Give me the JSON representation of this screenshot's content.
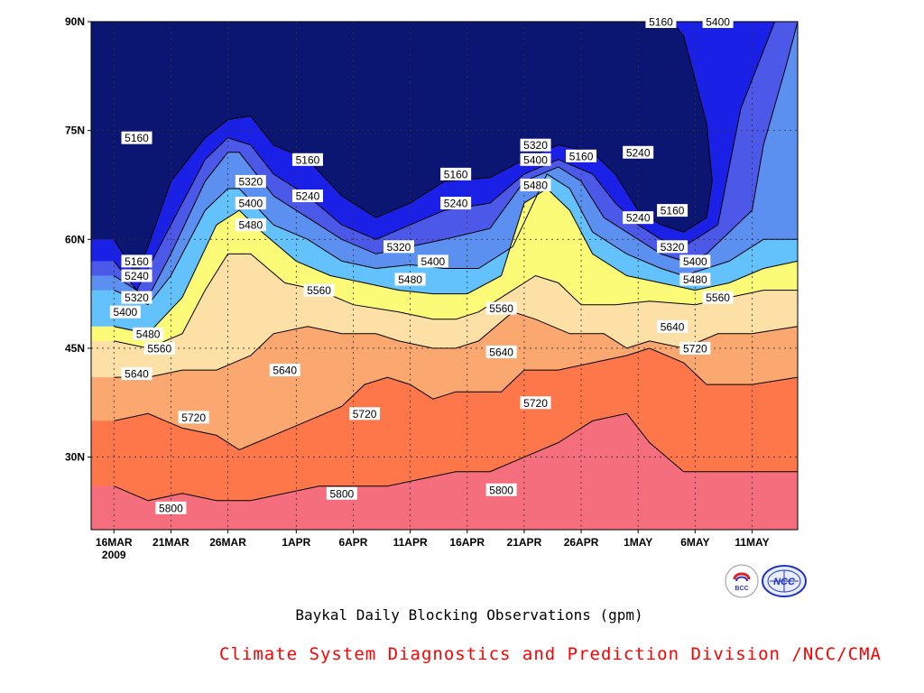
{
  "chart_data": {
    "type": "contour",
    "title": "Baykal Daily Blocking Observations (gpm)",
    "credit": "Climate System Diagnostics and Prediction Division /NCC/CMA",
    "x_ticks": [
      "16MAR",
      "21MAR",
      "26MAR",
      "1APR",
      "6APR",
      "11APR",
      "16APR",
      "21APR",
      "26APR",
      "1MAY",
      "6MAY",
      "11MAY"
    ],
    "x_year": "2009",
    "x_range": [
      "2009-03-16",
      "2009-05-11"
    ],
    "y_ticks": [
      "30N",
      "45N",
      "60N",
      "75N",
      "90N"
    ],
    "y_tick_values": [
      30,
      45,
      60,
      75,
      90
    ],
    "ylim": [
      20,
      90
    ],
    "contour_levels": [
      5160,
      5240,
      5320,
      5400,
      5480,
      5560,
      5640,
      5720,
      5800
    ],
    "fill_colors": [
      "#0a1672",
      "#1b20e6",
      "#4c58e8",
      "#5b8ff0",
      "#63c2fc",
      "#fbfb78",
      "#fde0a6",
      "#fba870",
      "#fd774a",
      "#f56e7d"
    ],
    "contour_lines": [
      {
        "level": 5160,
        "points": [
          [
            16,
            60
          ],
          [
            18,
            55
          ],
          [
            19,
            59
          ],
          [
            21,
            68
          ],
          [
            24,
            74
          ],
          [
            26,
            76.5
          ],
          [
            28,
            77
          ],
          [
            30,
            73
          ],
          [
            33,
            71
          ],
          [
            36,
            66
          ],
          [
            39,
            63
          ],
          [
            42,
            65
          ],
          [
            45,
            68
          ],
          [
            49,
            68.5
          ],
          [
            52,
            71
          ],
          [
            55,
            73
          ],
          [
            58,
            72
          ],
          [
            60,
            69
          ],
          [
            62,
            64
          ],
          [
            64,
            62
          ],
          [
            66,
            61
          ],
          [
            68,
            63
          ],
          [
            68.5,
            68
          ],
          [
            68,
            76
          ],
          [
            66,
            88
          ],
          [
            65,
            90
          ]
        ]
      },
      {
        "level": 5240,
        "points": [
          [
            16,
            57
          ],
          [
            18,
            53
          ],
          [
            21,
            62
          ],
          [
            24,
            71
          ],
          [
            26,
            74
          ],
          [
            28,
            73
          ],
          [
            30,
            69
          ],
          [
            33,
            66
          ],
          [
            36,
            62
          ],
          [
            39,
            60
          ],
          [
            42,
            62
          ],
          [
            45,
            64
          ],
          [
            49,
            65
          ],
          [
            52,
            69
          ],
          [
            55,
            71
          ],
          [
            58,
            69
          ],
          [
            60,
            65
          ],
          [
            62,
            62
          ],
          [
            64,
            60
          ],
          [
            66,
            59
          ],
          [
            69,
            62
          ],
          [
            70,
            70
          ],
          [
            71,
            78
          ],
          [
            74,
            90
          ]
        ]
      },
      {
        "level": 5320,
        "points": [
          [
            16,
            55
          ],
          [
            19,
            52
          ],
          [
            21,
            58
          ],
          [
            24,
            68
          ],
          [
            26,
            72
          ],
          [
            27,
            72
          ],
          [
            30,
            66
          ],
          [
            33,
            63
          ],
          [
            36,
            60
          ],
          [
            39,
            58
          ],
          [
            42,
            59
          ],
          [
            45,
            60
          ],
          [
            49,
            61.5
          ],
          [
            52,
            68
          ],
          [
            55,
            70
          ],
          [
            57,
            68
          ],
          [
            59,
            63
          ],
          [
            62,
            60
          ],
          [
            64,
            58
          ],
          [
            66,
            57
          ],
          [
            68,
            58
          ],
          [
            72,
            64
          ],
          [
            73,
            73
          ],
          [
            75,
            84
          ],
          [
            76,
            90
          ]
        ]
      },
      {
        "level": 5400,
        "points": [
          [
            16,
            53
          ],
          [
            19,
            51
          ],
          [
            21,
            55
          ],
          [
            24,
            64
          ],
          [
            26,
            67
          ],
          [
            27,
            67
          ],
          [
            30,
            62
          ],
          [
            33,
            60
          ],
          [
            36,
            57
          ],
          [
            39,
            56
          ],
          [
            42,
            56.5
          ],
          [
            45,
            56
          ],
          [
            48,
            56
          ],
          [
            51,
            59
          ],
          [
            54,
            69
          ],
          [
            56,
            67
          ],
          [
            58,
            61
          ],
          [
            61,
            58
          ],
          [
            64,
            56
          ],
          [
            66,
            55
          ],
          [
            70,
            57
          ],
          [
            73,
            60
          ],
          [
            76,
            60
          ]
        ]
      },
      {
        "level": 5480,
        "points": [
          [
            16,
            48
          ],
          [
            19,
            47
          ],
          [
            22,
            52
          ],
          [
            25,
            62
          ],
          [
            27,
            64
          ],
          [
            29,
            61
          ],
          [
            32,
            57
          ],
          [
            35,
            55
          ],
          [
            38,
            54
          ],
          [
            41,
            53
          ],
          [
            44,
            52.5
          ],
          [
            47,
            52.5
          ],
          [
            50,
            55
          ],
          [
            52,
            65
          ],
          [
            54,
            67
          ],
          [
            56,
            64
          ],
          [
            58,
            58
          ],
          [
            61,
            55
          ],
          [
            64,
            54
          ],
          [
            67,
            53
          ],
          [
            70,
            54
          ],
          [
            73,
            56
          ],
          [
            76,
            57
          ]
        ]
      },
      {
        "level": 5560,
        "points": [
          [
            16,
            46
          ],
          [
            19,
            45
          ],
          [
            22,
            47
          ],
          [
            24,
            53
          ],
          [
            26,
            58
          ],
          [
            28,
            58
          ],
          [
            31,
            54
          ],
          [
            34,
            53
          ],
          [
            37,
            51
          ],
          [
            41,
            50
          ],
          [
            44,
            49
          ],
          [
            46,
            49
          ],
          [
            48,
            50
          ],
          [
            51,
            53
          ],
          [
            53,
            55
          ],
          [
            55,
            54
          ],
          [
            57,
            51
          ],
          [
            60,
            51
          ],
          [
            63,
            51.5
          ],
          [
            67,
            51
          ],
          [
            70,
            52
          ],
          [
            73,
            53
          ],
          [
            76,
            53
          ]
        ]
      },
      {
        "level": 5640,
        "points": [
          [
            16,
            41
          ],
          [
            19,
            41
          ],
          [
            22,
            42
          ],
          [
            25,
            42
          ],
          [
            28,
            44
          ],
          [
            30,
            47
          ],
          [
            33,
            48
          ],
          [
            36,
            47
          ],
          [
            39,
            47
          ],
          [
            41,
            46
          ],
          [
            44,
            45
          ],
          [
            46,
            45
          ],
          [
            48,
            46
          ],
          [
            51,
            50
          ],
          [
            53,
            49
          ],
          [
            56,
            47
          ],
          [
            59,
            47
          ],
          [
            61,
            45
          ],
          [
            63,
            46
          ],
          [
            66,
            45
          ],
          [
            69,
            47
          ],
          [
            72,
            47
          ],
          [
            76,
            48
          ]
        ]
      },
      {
        "level": 5720,
        "points": [
          [
            16,
            35
          ],
          [
            19,
            36
          ],
          [
            22,
            34
          ],
          [
            25,
            33
          ],
          [
            27,
            31
          ],
          [
            30,
            33
          ],
          [
            33,
            35
          ],
          [
            36,
            37
          ],
          [
            38,
            40
          ],
          [
            40,
            41
          ],
          [
            42,
            40
          ],
          [
            44,
            38
          ],
          [
            46,
            39
          ],
          [
            48,
            39
          ],
          [
            50,
            39
          ],
          [
            52,
            42
          ],
          [
            55,
            42
          ],
          [
            58,
            43
          ],
          [
            61,
            44
          ],
          [
            63,
            45
          ],
          [
            66,
            43
          ],
          [
            68,
            40
          ],
          [
            72,
            40
          ],
          [
            76,
            41
          ]
        ]
      },
      {
        "level": 5800,
        "points": [
          [
            16,
            26
          ],
          [
            19,
            24
          ],
          [
            22,
            25
          ],
          [
            25,
            24
          ],
          [
            28,
            24
          ],
          [
            31,
            25
          ],
          [
            34,
            26
          ],
          [
            37,
            26
          ],
          [
            40,
            26
          ],
          [
            43,
            27
          ],
          [
            46,
            28
          ],
          [
            49,
            28
          ],
          [
            52,
            30
          ],
          [
            55,
            32
          ],
          [
            58,
            35
          ],
          [
            61,
            36
          ],
          [
            63,
            32
          ],
          [
            66,
            28
          ],
          [
            70,
            28
          ],
          [
            76,
            28
          ]
        ]
      }
    ],
    "inline_labels": [
      {
        "text": "5160",
        "x": 18,
        "y": 74
      },
      {
        "text": "5160",
        "x": 33,
        "y": 71
      },
      {
        "text": "5160",
        "x": 46,
        "y": 69
      },
      {
        "text": "5160",
        "x": 57,
        "y": 71.5
      },
      {
        "text": "5160",
        "x": 65,
        "y": 64
      },
      {
        "text": "5160",
        "x": 64,
        "y": 90
      },
      {
        "text": "5160",
        "x": 18,
        "y": 57
      },
      {
        "text": "5240",
        "x": 18,
        "y": 55
      },
      {
        "text": "5240",
        "x": 33,
        "y": 66
      },
      {
        "text": "5240",
        "x": 46,
        "y": 65
      },
      {
        "text": "5240",
        "x": 62,
        "y": 72
      },
      {
        "text": "5240",
        "x": 62,
        "y": 63
      },
      {
        "text": "5320",
        "x": 18,
        "y": 52
      },
      {
        "text": "5320",
        "x": 28,
        "y": 68
      },
      {
        "text": "5320",
        "x": 41,
        "y": 59
      },
      {
        "text": "5320",
        "x": 53,
        "y": 73
      },
      {
        "text": "5320",
        "x": 65,
        "y": 59
      },
      {
        "text": "5400",
        "x": 17,
        "y": 50
      },
      {
        "text": "5400",
        "x": 28,
        "y": 65
      },
      {
        "text": "5400",
        "x": 44,
        "y": 57
      },
      {
        "text": "5400",
        "x": 53,
        "y": 71
      },
      {
        "text": "5400",
        "x": 67,
        "y": 57
      },
      {
        "text": "5400",
        "x": 69,
        "y": 90
      },
      {
        "text": "5480",
        "x": 19,
        "y": 47
      },
      {
        "text": "5480",
        "x": 28,
        "y": 62
      },
      {
        "text": "5480",
        "x": 42,
        "y": 54.5
      },
      {
        "text": "5480",
        "x": 53,
        "y": 67.5
      },
      {
        "text": "5480",
        "x": 67,
        "y": 54.5
      },
      {
        "text": "5560",
        "x": 20,
        "y": 45
      },
      {
        "text": "5560",
        "x": 34,
        "y": 53
      },
      {
        "text": "5560",
        "x": 50,
        "y": 50.5
      },
      {
        "text": "5560",
        "x": 69,
        "y": 52
      },
      {
        "text": "5640",
        "x": 18,
        "y": 41.5
      },
      {
        "text": "5640",
        "x": 31,
        "y": 42
      },
      {
        "text": "5640",
        "x": 50,
        "y": 44.5
      },
      {
        "text": "5640",
        "x": 65,
        "y": 48
      },
      {
        "text": "5720",
        "x": 23,
        "y": 35.5
      },
      {
        "text": "5720",
        "x": 38,
        "y": 36
      },
      {
        "text": "5720",
        "x": 53,
        "y": 37.5
      },
      {
        "text": "5720",
        "x": 67,
        "y": 45
      },
      {
        "text": "5800",
        "x": 21,
        "y": 23
      },
      {
        "text": "5800",
        "x": 36,
        "y": 25
      },
      {
        "text": "5800",
        "x": 50,
        "y": 25.5
      }
    ]
  }
}
